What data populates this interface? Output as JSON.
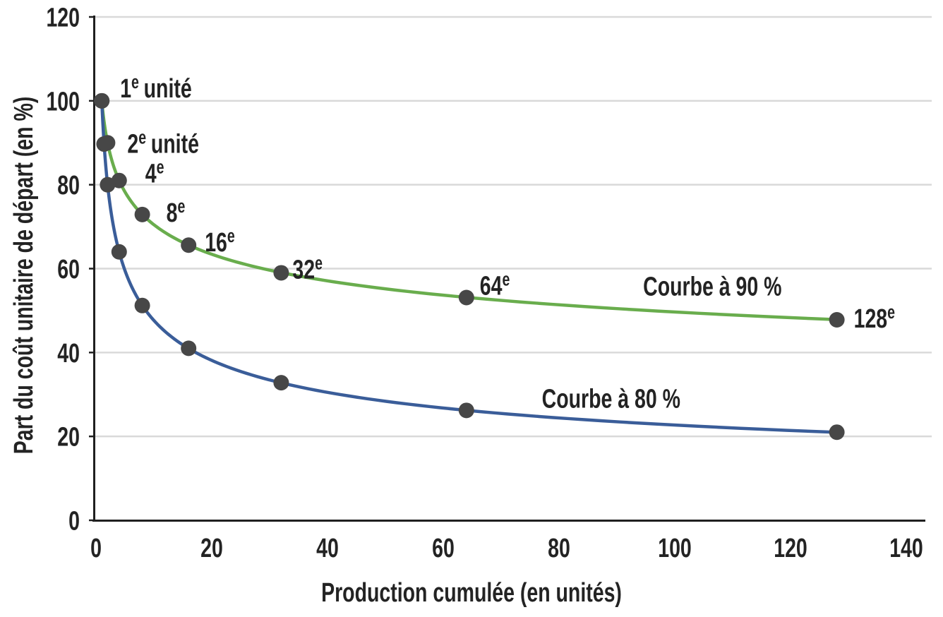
{
  "page": {
    "background_color": "#ffffff",
    "text_color": "#232323"
  },
  "chart_data": {
    "type": "line",
    "title": "",
    "xlabel": "Production cumulée (en unités)",
    "ylabel": "Part du coût unitaire de départ (en %)",
    "xlim": [
      0,
      140
    ],
    "ylim": [
      0,
      120
    ],
    "x_ticks": [
      0,
      20,
      40,
      60,
      80,
      100,
      120,
      140
    ],
    "y_ticks": [
      0,
      20,
      40,
      60,
      80,
      100,
      120
    ],
    "grid": "horizontal-only",
    "gridline_color": "#d9d9d9",
    "axis_color": "#1f1f1f",
    "marker_color": "#474747",
    "legend": "inline-curve-labels",
    "series": [
      {
        "name": "Courbe à 90 %",
        "color": "#69ad4d",
        "learning_rate": 0.9,
        "label_anchor": {
          "x": 106.5,
          "y": 55.8
        },
        "points": [
          {
            "x": 1,
            "y": 100,
            "label": {
              "num": "1",
              "sup": "e",
              "rest": "unité"
            }
          },
          {
            "x": 2,
            "y": 90,
            "label": {
              "num": "2",
              "sup": "e",
              "rest": "unité"
            }
          },
          {
            "x": 4,
            "y": 81,
            "label": {
              "num": "4",
              "sup": "e",
              "rest": ""
            }
          },
          {
            "x": 8,
            "y": 72.9,
            "label": {
              "num": "8",
              "sup": "e",
              "rest": ""
            }
          },
          {
            "x": 16,
            "y": 65.6,
            "label": {
              "num": "16",
              "sup": "e",
              "rest": ""
            }
          },
          {
            "x": 32,
            "y": 59,
            "label": {
              "num": "32",
              "sup": "e",
              "rest": ""
            }
          },
          {
            "x": 64,
            "y": 53.1,
            "label": {
              "num": "64",
              "sup": "e",
              "rest": ""
            }
          },
          {
            "x": 128,
            "y": 47.8,
            "label": {
              "num": "128",
              "sup": "e",
              "rest": ""
            }
          }
        ]
      },
      {
        "name": "Courbe à 80 %",
        "color": "#3a5d99",
        "learning_rate": 0.8,
        "label_anchor": {
          "x": 89,
          "y": 29
        },
        "points": [
          {
            "x": 1,
            "y": 100
          },
          {
            "x": 2,
            "y": 80
          },
          {
            "x": 4,
            "y": 64
          },
          {
            "x": 8,
            "y": 51.2
          },
          {
            "x": 16,
            "y": 41
          },
          {
            "x": 32,
            "y": 32.8
          },
          {
            "x": 64,
            "y": 26.2
          },
          {
            "x": 128,
            "y": 21
          }
        ]
      }
    ],
    "extra_marker": {
      "x": 1.39,
      "y": 89.7
    }
  }
}
